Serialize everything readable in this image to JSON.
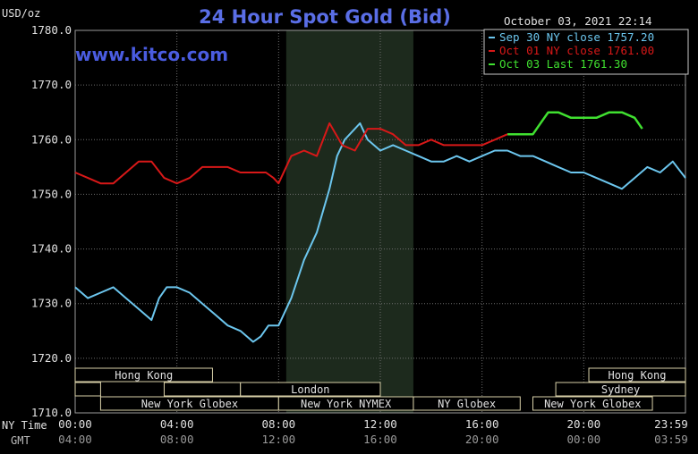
{
  "chart_data": {
    "type": "line",
    "title": "24 Hour Spot Gold (Bid)",
    "ylabel": "USD/oz",
    "watermark": "www.kitco.com",
    "timestamp": "October 03, 2021 22:14",
    "ylim": [
      1710,
      1780
    ],
    "y_ticks": [
      "1780.0",
      "1770.0",
      "1760.0",
      "1750.0",
      "1740.0",
      "1730.0",
      "1720.0",
      "1710.0"
    ],
    "x_ticks_ny": [
      "00:00",
      "04:00",
      "08:00",
      "12:00",
      "16:00",
      "20:00",
      "23:59"
    ],
    "x_ticks_gmt": [
      "04:00",
      "08:00",
      "12:00",
      "16:00",
      "20:00",
      "00:00",
      "03:59"
    ],
    "ny_time_label": "NY Time",
    "gmt_label": "GMT",
    "grid": true,
    "legend_position": "top-right",
    "series": [
      {
        "name": "Sep 30 NY close 1757.20",
        "color": "#6cc6ee",
        "x_hours": [
          0,
          0.5,
          1,
          1.5,
          2,
          2.5,
          3,
          3.3,
          3.6,
          4,
          4.5,
          5,
          5.5,
          6,
          6.5,
          7,
          7.3,
          7.6,
          8,
          8.5,
          9,
          9.5,
          10,
          10.3,
          10.6,
          11,
          11.2,
          11.5,
          12,
          12.5,
          13,
          13.5,
          14,
          14.5,
          15,
          15.5,
          16,
          16.5,
          17,
          17.5,
          18,
          18.5,
          19,
          19.5,
          20,
          20.5,
          21,
          21.5,
          22,
          22.5,
          23,
          23.5,
          24
        ],
        "values": [
          1733,
          1731,
          1732,
          1733,
          1731,
          1729,
          1727,
          1731,
          1733,
          1733,
          1732,
          1730,
          1728,
          1726,
          1725,
          1723,
          1724,
          1726,
          1726,
          1731,
          1738,
          1743,
          1751,
          1757,
          1760,
          1762,
          1763,
          1760,
          1758,
          1759,
          1758,
          1757,
          1756,
          1756,
          1757,
          1756,
          1757,
          1758,
          1758,
          1757,
          1757,
          1756,
          1755,
          1754,
          1754,
          1753,
          1752,
          1751,
          1753,
          1755,
          1754,
          1756,
          1753
        ]
      },
      {
        "name": "Oct 01 NY close 1761.00",
        "color": "#d81818",
        "x_hours": [
          0,
          0.5,
          1,
          1.5,
          2,
          2.5,
          3,
          3.5,
          4,
          4.5,
          5,
          5.5,
          6,
          6.5,
          7,
          7.5,
          7.8,
          8,
          8.5,
          9,
          9.5,
          10,
          10.5,
          11,
          11.5,
          12,
          12.5,
          13,
          13.5,
          14,
          14.5,
          15,
          15.5,
          16,
          16.5,
          17
        ],
        "values": [
          1754,
          1753,
          1752,
          1752,
          1754,
          1756,
          1756,
          1753,
          1752,
          1753,
          1755,
          1755,
          1755,
          1754,
          1754,
          1754,
          1753,
          1752,
          1757,
          1758,
          1757,
          1763,
          1759,
          1758,
          1762,
          1762,
          1761,
          1759,
          1759,
          1760,
          1759,
          1759,
          1759,
          1759,
          1760,
          1761
        ]
      },
      {
        "name": "Oct 03 Last 1761.30",
        "color": "#40e030",
        "x_hours": [
          17,
          17.5,
          18,
          18.3,
          18.6,
          19,
          19.5,
          20,
          20.5,
          21,
          21.5,
          22,
          22.3
        ],
        "values": [
          1761,
          1761,
          1761,
          1763,
          1765,
          1765,
          1764,
          1764,
          1764,
          1765,
          1765,
          1764,
          1762
        ]
      }
    ],
    "sessions": [
      {
        "label": "Hong Kong",
        "row": 0,
        "start": 0,
        "end": 5.4
      },
      {
        "label": "",
        "row": 1,
        "start": 0,
        "end": 1
      },
      {
        "label": "",
        "row": 1,
        "start": 3.5,
        "end": 6.5
      },
      {
        "label": "London",
        "row": 1,
        "start": 6.5,
        "end": 12
      },
      {
        "label": "New York Globex",
        "row": 2,
        "start": 1,
        "end": 8
      },
      {
        "label": "New York NYMEX",
        "row": 2,
        "start": 8,
        "end": 13.3
      },
      {
        "label": "NY Globex",
        "row": 2,
        "start": 13.3,
        "end": 17.5
      },
      {
        "label": "Hong Kong",
        "row": 0,
        "start": 20.2,
        "end": 24
      },
      {
        "label": "Sydney",
        "row": 1,
        "start": 18.9,
        "end": 24
      },
      {
        "label": "New York Globex",
        "row": 2,
        "start": 18,
        "end": 22.7
      }
    ],
    "nymex_shade": [
      8.3,
      13.3
    ]
  }
}
